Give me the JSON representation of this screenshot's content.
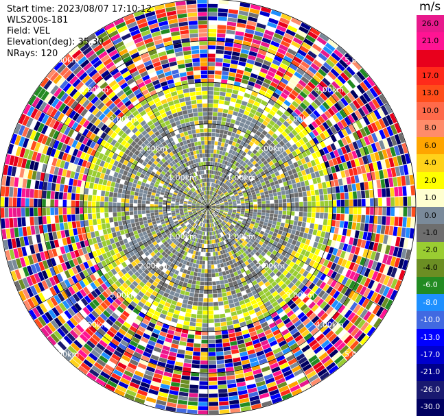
{
  "header": {
    "start_time": "Start time: 2023/08/07 17:10:12",
    "instrument": "WLS200s-181",
    "field": "Field: VEL",
    "elevation": "Elevation(deg): 35.30",
    "nrays": "NRays: 120"
  },
  "colorbar": {
    "unit": "m/s",
    "levels": [
      {
        "label": "26.0",
        "color": "#e8198c"
      },
      {
        "label": "21.0",
        "color": "#ff1493"
      },
      {
        "label": "",
        "color": "#e8001c"
      },
      {
        "label": "17.0",
        "color": "#ff2a1a"
      },
      {
        "label": "13.0",
        "color": "#ff4d1a"
      },
      {
        "label": "10.0",
        "color": "#ff6a4a"
      },
      {
        "label": "8.0",
        "color": "#ff8c6a"
      },
      {
        "label": "6.0",
        "color": "#ffa500"
      },
      {
        "label": "4.0",
        "color": "#ffd21a"
      },
      {
        "label": "2.0",
        "color": "#ffff00"
      },
      {
        "label": "1.0",
        "color": "#ffffd0"
      },
      {
        "label": "0.0",
        "color": "#7a8a9a"
      },
      {
        "label": "-1.0",
        "color": "#6e6e6e"
      },
      {
        "label": "-2.0",
        "color": "#9acd32"
      },
      {
        "label": "-4.0",
        "color": "#6b8e23"
      },
      {
        "label": "-6.0",
        "color": "#228b22"
      },
      {
        "label": "-8.0",
        "color": "#1e90ff"
      },
      {
        "label": "-10.0",
        "color": "#4169e1"
      },
      {
        "label": "-13.0",
        "color": "#0000ff"
      },
      {
        "label": "-17.0",
        "color": "#0000cd"
      },
      {
        "label": "-21.0",
        "color": "#00008b"
      },
      {
        "label": "-26.0",
        "color": "#191970"
      },
      {
        "label": "-30.0",
        "color": "#000060"
      }
    ]
  },
  "chart_data": {
    "type": "heatmap",
    "title": "",
    "projection": "polar PPI",
    "rays": 120,
    "range_rings_km": [
      1.0,
      2.0,
      3.0,
      4.0,
      5.0
    ],
    "ring_labels": [
      "1.00km",
      "2.00km",
      "3.00km",
      "4.00km",
      "5.00km"
    ],
    "max_range_km": 5.0,
    "value_range": [
      -30,
      30
    ],
    "unit": "m/s",
    "notes_colors": {
      "near_zero": "#7a8a9a",
      "neg_small": "#9acd32",
      "pos_small": "#ffff00"
    }
  }
}
